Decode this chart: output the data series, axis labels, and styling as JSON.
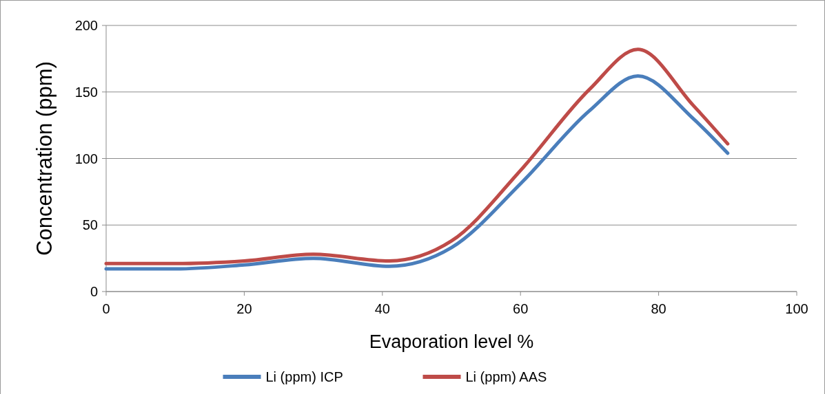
{
  "chart_data": {
    "type": "line",
    "xlabel": "Evaporation level %",
    "ylabel": "Concentration  (ppm)",
    "xlim": [
      0,
      100
    ],
    "xticks": [
      0,
      20,
      40,
      60,
      80,
      100
    ],
    "ylim": [
      0,
      200
    ],
    "yticks": [
      0,
      50,
      100,
      150,
      200
    ],
    "grid": "y",
    "legend": "bottom",
    "marker": "none",
    "line_style": "solid",
    "series": [
      {
        "name": "Li (ppm) ICP",
        "color": "#4a7ebb",
        "x": [
          0,
          10,
          20,
          30,
          41,
          50,
          60,
          70,
          77,
          85,
          90
        ],
        "values": [
          17,
          17,
          20,
          25,
          19,
          33,
          81,
          136,
          162,
          130,
          104
        ]
      },
      {
        "name": "Li (ppm) AAS",
        "color": "#be4b48",
        "x": [
          0,
          10,
          20,
          30,
          41,
          50,
          60,
          70,
          77,
          85,
          90
        ],
        "values": [
          21,
          21,
          23,
          28,
          23,
          38,
          91,
          152,
          182,
          140,
          111
        ]
      }
    ]
  }
}
